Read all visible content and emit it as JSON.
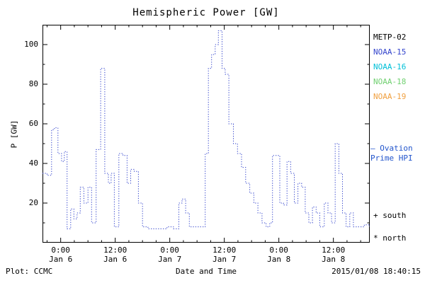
{
  "title": "Hemispheric Power [GW]",
  "axes": {
    "x_label": "Date and Time",
    "y_label": "P [GW]"
  },
  "footer": {
    "left": "Plot: CCMC",
    "right": "2015/01/08 18:40:15"
  },
  "legend": {
    "satellites": [
      {
        "label": "METP-02",
        "color": "#000000"
      },
      {
        "label": "NOAA-15",
        "color": "#3344cc"
      },
      {
        "label": "NOAA-16",
        "color": "#00c0d8"
      },
      {
        "label": "NOAA-18",
        "color": "#70d070"
      },
      {
        "label": "NOAA-19",
        "color": "#f0a040"
      }
    ],
    "ovation_line1": "— Ovation",
    "ovation_line2": "Prime HPI",
    "ovation_color": "#2255cc",
    "south": "+ south",
    "north": "* north"
  },
  "chart_data": {
    "type": "line",
    "title": "Hemispheric Power [GW]",
    "xlabel": "Date and Time",
    "ylabel": "P [GW]",
    "series_name": "Ovation Prime HPI",
    "line_color": "#3344cc",
    "line_style": "dotted-step",
    "ylim": [
      0,
      110
    ],
    "y_ticks_major": [
      20,
      40,
      60,
      80,
      100
    ],
    "y_ticks_minor": [
      10,
      30,
      50,
      70,
      90
    ],
    "x_hours_total": 72,
    "x_minor_step_hours": 3,
    "x_ticks": [
      {
        "t": 4,
        "time": "0:00",
        "date": "Jan 6"
      },
      {
        "t": 16,
        "time": "12:00",
        "date": "Jan 6"
      },
      {
        "t": 28,
        "time": "0:00",
        "date": "Jan 7"
      },
      {
        "t": 40,
        "time": "12:00",
        "date": "Jan 7"
      },
      {
        "t": 52,
        "time": "0:00",
        "date": "Jan 8"
      },
      {
        "t": 64,
        "time": "12:00",
        "date": "Jan 8"
      }
    ],
    "points_unit": "[hours from axis start (~Jan 5 20:00), hemispheric power GW]",
    "points": [
      [
        0,
        35
      ],
      [
        1,
        34
      ],
      [
        2,
        57
      ],
      [
        2.6,
        58
      ],
      [
        3.4,
        45
      ],
      [
        4.2,
        41
      ],
      [
        4.8,
        46
      ],
      [
        5.4,
        7
      ],
      [
        6.2,
        17
      ],
      [
        6.9,
        12
      ],
      [
        7.6,
        15
      ],
      [
        8.3,
        28
      ],
      [
        9.1,
        20
      ],
      [
        10,
        28
      ],
      [
        10.8,
        10
      ],
      [
        11.8,
        47
      ],
      [
        12.8,
        88
      ],
      [
        13.7,
        35
      ],
      [
        14.5,
        30
      ],
      [
        15.1,
        35
      ],
      [
        15.8,
        8
      ],
      [
        16.8,
        45
      ],
      [
        17.7,
        44
      ],
      [
        18.6,
        30
      ],
      [
        19.4,
        37
      ],
      [
        20.2,
        36
      ],
      [
        21.1,
        20
      ],
      [
        22,
        8
      ],
      [
        23.2,
        7
      ],
      [
        24.6,
        7
      ],
      [
        26,
        7
      ],
      [
        27.4,
        8
      ],
      [
        28.8,
        7
      ],
      [
        30,
        20
      ],
      [
        30.7,
        22
      ],
      [
        31.5,
        15
      ],
      [
        32.3,
        8
      ],
      [
        33.6,
        8
      ],
      [
        34.9,
        8
      ],
      [
        35.8,
        45
      ],
      [
        36.5,
        88
      ],
      [
        37.2,
        95
      ],
      [
        38,
        100
      ],
      [
        38.7,
        107
      ],
      [
        39.5,
        88
      ],
      [
        40.2,
        85
      ],
      [
        41,
        60
      ],
      [
        42,
        50
      ],
      [
        42.9,
        45
      ],
      [
        43.8,
        38
      ],
      [
        44.7,
        30
      ],
      [
        45.6,
        25
      ],
      [
        46.5,
        20
      ],
      [
        47.4,
        15
      ],
      [
        48.3,
        10
      ],
      [
        49.2,
        8
      ],
      [
        50,
        10
      ],
      [
        50.6,
        44
      ],
      [
        51.4,
        44
      ],
      [
        52.2,
        20
      ],
      [
        53,
        19
      ],
      [
        53.8,
        41
      ],
      [
        54.6,
        35
      ],
      [
        55.4,
        20
      ],
      [
        56.2,
        30
      ],
      [
        57,
        28
      ],
      [
        57.8,
        15
      ],
      [
        58.6,
        10
      ],
      [
        59.4,
        18
      ],
      [
        60.2,
        15
      ],
      [
        61,
        8
      ],
      [
        62,
        20
      ],
      [
        62.8,
        15
      ],
      [
        63.6,
        10
      ],
      [
        64.4,
        50
      ],
      [
        65.2,
        35
      ],
      [
        66,
        15
      ],
      [
        66.8,
        8
      ],
      [
        67.6,
        15
      ],
      [
        68.4,
        8
      ],
      [
        69.6,
        8
      ],
      [
        70.8,
        9
      ],
      [
        72,
        8
      ]
    ]
  }
}
